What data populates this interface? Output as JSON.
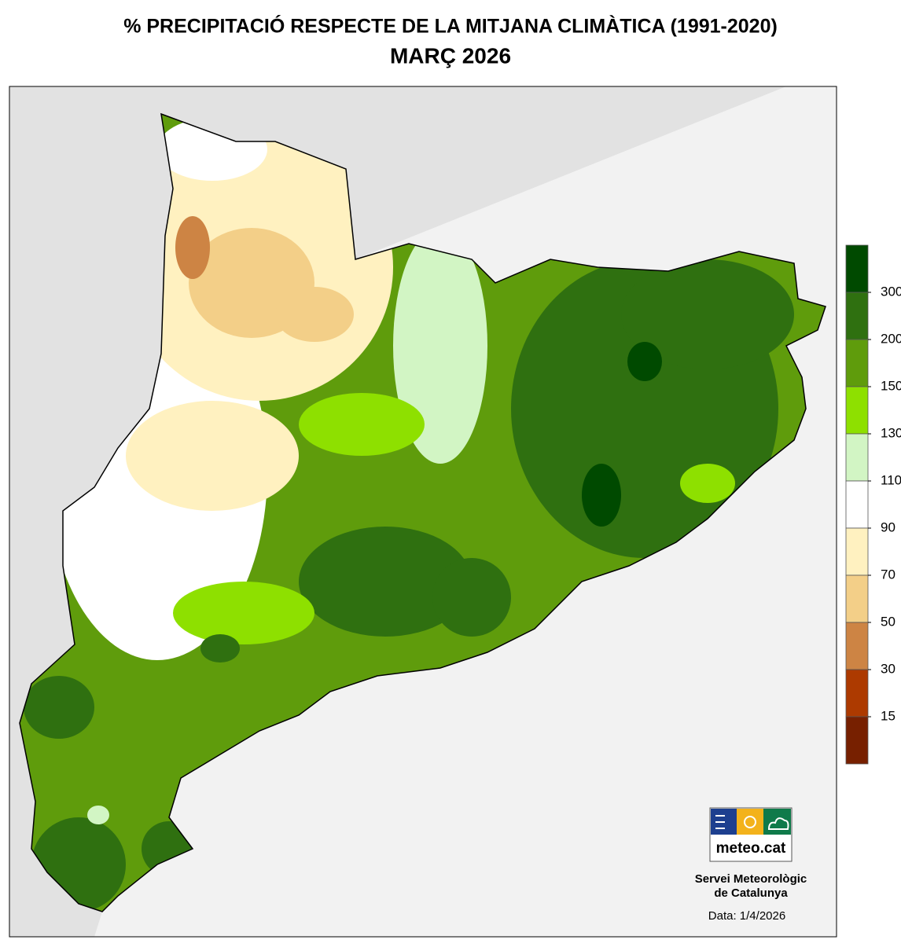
{
  "map": {
    "title": "% PRECIPITACIÓ RESPECTE DE LA MITJANA CLIMÀTICA (1991-2020)",
    "subtitle": "MARÇ 2026",
    "legend": {
      "colors": [
        "#004a00",
        "#2f7010",
        "#5f9c0c",
        "#8ee000",
        "#d2f5c4",
        "#ffffff",
        "#fff1c0",
        "#f3cf88",
        "#cd8444",
        "#ad3a00",
        "#772000"
      ],
      "ticks": [
        300,
        200,
        150,
        130,
        110,
        90,
        70,
        50,
        30,
        15
      ]
    },
    "logo": "meteo.cat",
    "credit": [
      "Servei Meteorològic",
      "de Catalunya"
    ],
    "date": "Data: 1/4/2026"
  }
}
